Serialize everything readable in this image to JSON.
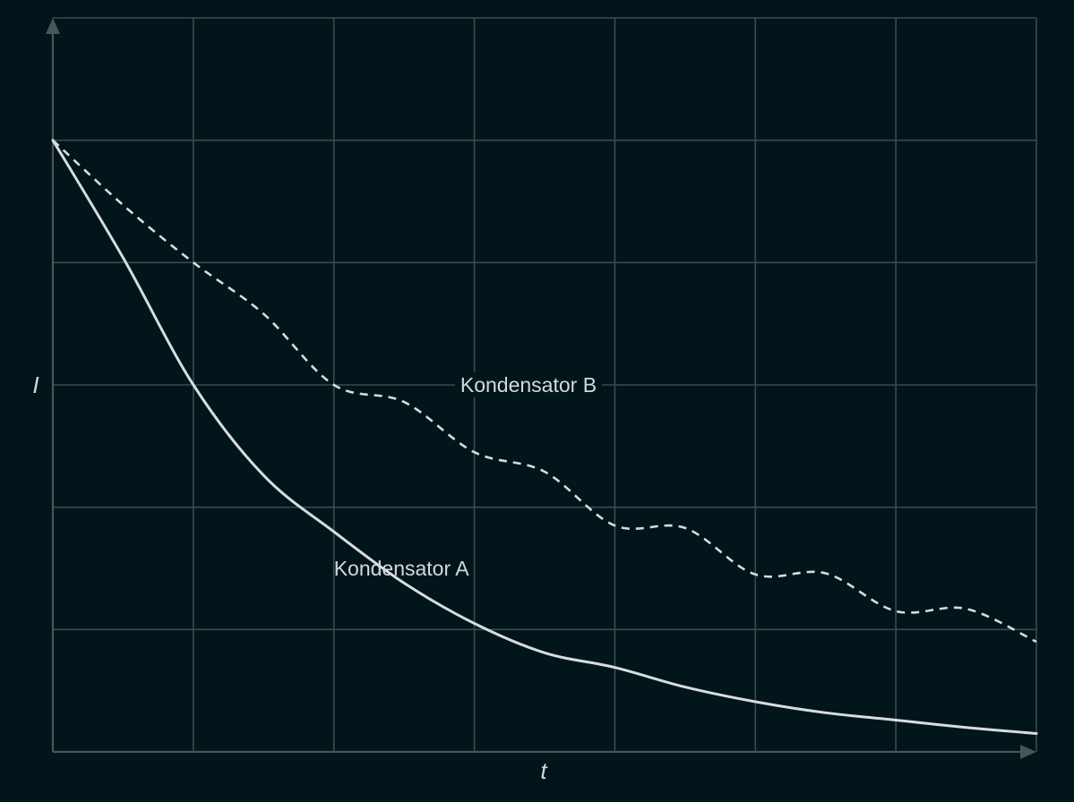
{
  "chart_data": {
    "type": "line",
    "xlabel": "t",
    "ylabel": "I",
    "xlim": [
      0,
      7
    ],
    "ylim": [
      0,
      6
    ],
    "grid": true,
    "x_ticks": [
      0,
      1,
      2,
      3,
      4,
      5,
      6,
      7
    ],
    "y_ticks": [
      0,
      1,
      2,
      3,
      4,
      5,
      6
    ],
    "x": [
      0,
      0.5,
      1,
      1.5,
      2,
      2.5,
      3,
      3.5,
      4,
      4.5,
      5,
      5.5,
      6,
      6.5,
      7
    ],
    "series": [
      {
        "name": "Kondensator A",
        "style": "solid",
        "color": "#d7dcdc",
        "values": [
          5.0,
          4.04,
          3.0,
          2.26,
          1.8,
          1.38,
          1.05,
          0.81,
          0.69,
          0.53,
          0.41,
          0.32,
          0.26,
          0.2,
          0.15
        ]
      },
      {
        "name": "Kondensator B",
        "style": "dashed",
        "color": "#d7dcdc",
        "values": [
          5.0,
          4.47,
          4.0,
          3.58,
          3.0,
          2.86,
          2.45,
          2.29,
          1.85,
          1.83,
          1.45,
          1.46,
          1.15,
          1.17,
          0.9
        ]
      }
    ],
    "annotations": [
      {
        "text": "Kondensator A",
        "x": 2.0,
        "y": 1.5,
        "series": 0
      },
      {
        "text": "Kondensator B",
        "x": 2.9,
        "y": 3.0,
        "series": 1
      }
    ]
  }
}
